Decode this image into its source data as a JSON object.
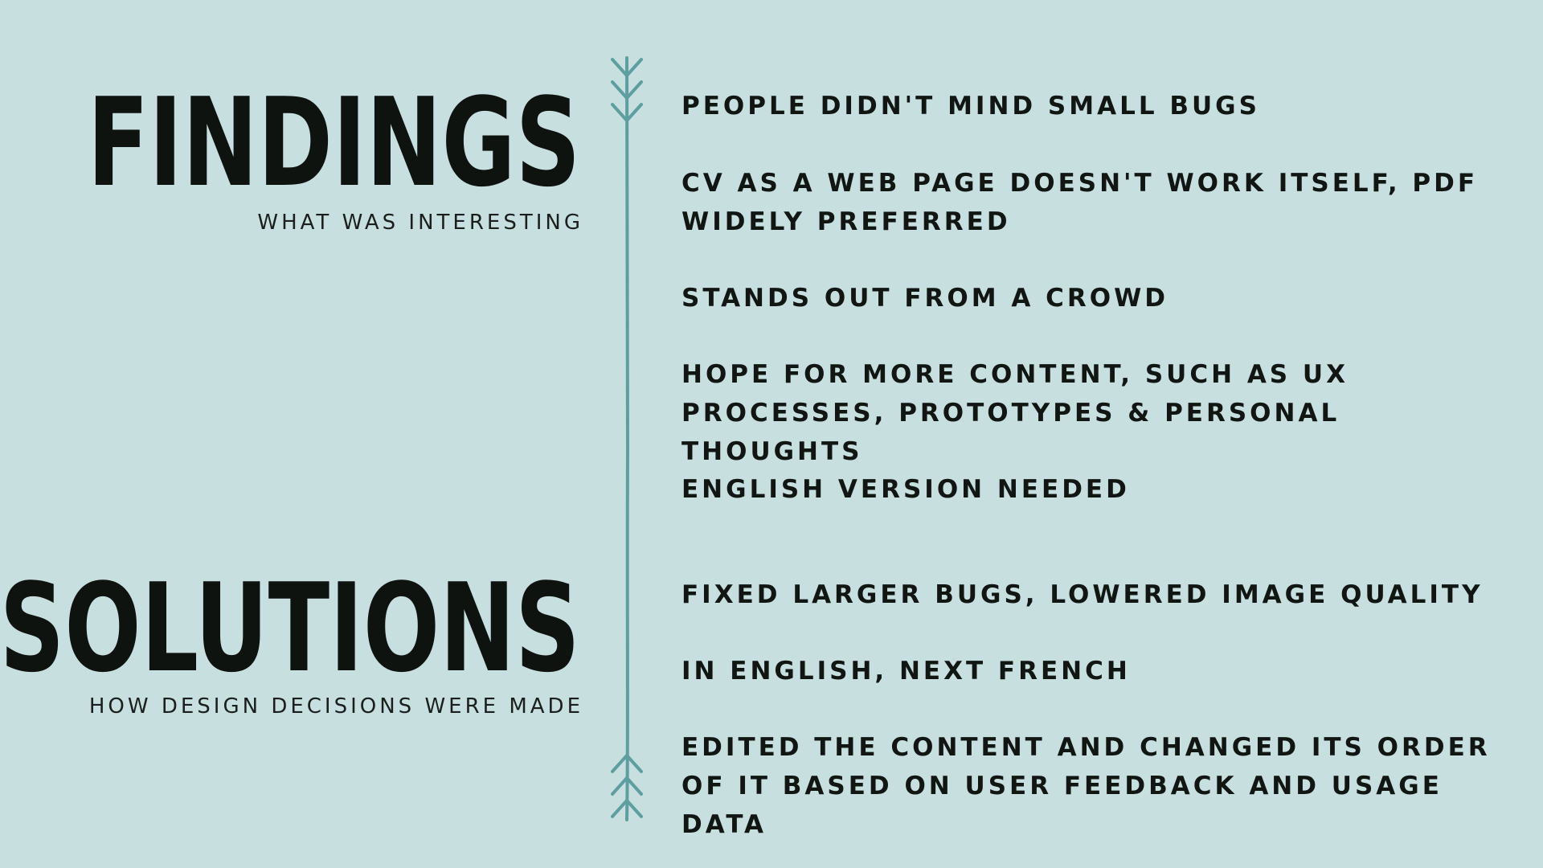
{
  "findings": {
    "title": "FINDINGS",
    "subtitle": "WHAT WAS INTERESTING",
    "items": [
      "PEOPLE DIDN'T MIND SMALL BUGS",
      "CV AS A WEB PAGE DOESN'T WORK ITSELF, PDF WIDELY PREFERRED",
      "STANDS OUT FROM A CROWD",
      "HOPE FOR MORE CONTENT, SUCH AS UX PROCESSES, PROTOTYPES & PERSONAL THOUGHTS",
      "ENGLISH VERSION NEEDED"
    ]
  },
  "solutions": {
    "title": "SOLUTIONS",
    "subtitle": "HOW DESIGN DECISIONS WERE MADE",
    "items": [
      "FIXED LARGER BUGS, LOWERED IMAGE QUALITY",
      "IN ENGLISH, NEXT FRENCH",
      "EDITED THE CONTENT AND CHANGED ITS ORDER OF IT BASED ON USER FEEDBACK AND USAGE DATA"
    ]
  },
  "colors": {
    "background": "#c8dfe0",
    "arrow": "#5f9ea0",
    "text": "#111613"
  },
  "icons": {
    "divider": "arrow-divider-icon"
  }
}
